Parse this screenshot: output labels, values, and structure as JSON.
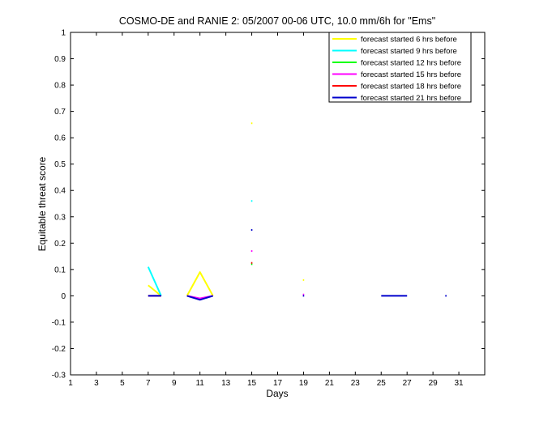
{
  "chart_data": {
    "type": "line",
    "title": "COSMO-DE and RANIE 2: 05/2007 00-06 UTC, 10.0 mm/6h for \"Ems\"",
    "xlabel": "Days",
    "ylabel": "Equitable threat score",
    "xlim": [
      1,
      33
    ],
    "ylim": [
      -0.3,
      1
    ],
    "x_ticks": [
      "1",
      "3",
      "5",
      "7",
      "9",
      "11",
      "13",
      "15",
      "17",
      "19",
      "21",
      "23",
      "25",
      "27",
      "29",
      "31"
    ],
    "y_ticks": [
      "-0.3",
      "-0.2",
      "-0.1",
      "0",
      "0.1",
      "0.2",
      "0.3",
      "0.4",
      "0.5",
      "0.6",
      "0.7",
      "0.8",
      "0.9",
      "1"
    ],
    "grid": false,
    "legend_position": "top-right",
    "series": [
      {
        "name": "forecast started 6 hrs before",
        "color": "#ffff00",
        "segments": [
          [
            [
              7,
              0.04
            ],
            [
              8,
              0.0
            ]
          ],
          [
            [
              10,
              0.0
            ],
            [
              11,
              0.09
            ],
            [
              12,
              0.0
            ]
          ],
          [
            [
              15,
              0.655
            ]
          ],
          [
            [
              19,
              0.06
            ]
          ]
        ]
      },
      {
        "name": "forecast started 9 hrs before",
        "color": "#00ffff",
        "segments": [
          [
            [
              7,
              0.11
            ],
            [
              8,
              0.0
            ]
          ],
          [
            [
              15,
              0.36
            ]
          ]
        ]
      },
      {
        "name": "forecast started 12 hrs before",
        "color": "#00ff00",
        "segments": [
          [
            [
              15,
              0.12
            ]
          ]
        ]
      },
      {
        "name": "forecast started 15 hrs before",
        "color": "#ff00ff",
        "segments": [
          [
            [
              10,
              0.0
            ],
            [
              11,
              -0.01
            ],
            [
              12,
              0.0
            ]
          ],
          [
            [
              15,
              0.17
            ]
          ],
          [
            [
              19,
              0.005
            ]
          ]
        ]
      },
      {
        "name": "forecast started 18 hrs before",
        "color": "#ff0000",
        "segments": [
          [
            [
              7,
              0.0
            ],
            [
              8,
              0.0
            ]
          ],
          [
            [
              15,
              0.125
            ]
          ]
        ]
      },
      {
        "name": "forecast started 21 hrs before",
        "color": "#0000cc",
        "segments": [
          [
            [
              7,
              0.0
            ],
            [
              8,
              0.0
            ]
          ],
          [
            [
              10,
              0.0
            ],
            [
              11,
              -0.015
            ],
            [
              12,
              0.0
            ]
          ],
          [
            [
              15,
              0.25
            ]
          ],
          [
            [
              19,
              0.0
            ]
          ],
          [
            [
              25,
              0.0
            ],
            [
              27,
              0.0
            ]
          ],
          [
            [
              30,
              0.0
            ]
          ]
        ]
      }
    ]
  }
}
